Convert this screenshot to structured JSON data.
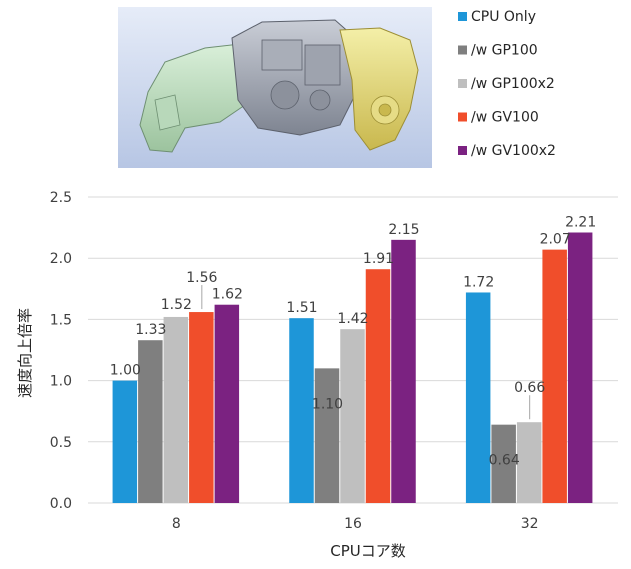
{
  "chart_data": {
    "type": "bar",
    "title": "",
    "xlabel": "CPUコア数",
    "ylabel": "速度向上倍率",
    "categories": [
      "8",
      "16",
      "32"
    ],
    "ylim": [
      0,
      2.5
    ],
    "yticks": [
      "0.0",
      "0.5",
      "1.0",
      "1.5",
      "2.0",
      "2.5"
    ],
    "grid": true,
    "legend_position": "top-right",
    "series": [
      {
        "name": "CPU Only",
        "color": "#1E96D8",
        "values": [
          1.0,
          1.51,
          1.72
        ],
        "labels": [
          "1.00",
          "1.51",
          "1.72"
        ]
      },
      {
        "name": "/w GP100",
        "color": "#7F7F7F",
        "values": [
          1.33,
          1.1,
          0.64
        ],
        "labels": [
          "1.33",
          "1.10",
          "0.64"
        ]
      },
      {
        "name": "/w GP100x2",
        "color": "#BFBFBF",
        "values": [
          1.52,
          1.42,
          0.66
        ],
        "labels": [
          "1.52",
          "1.42",
          "0.66"
        ]
      },
      {
        "name": "/w GV100",
        "color": "#F04E2B",
        "values": [
          1.56,
          1.91,
          2.07
        ],
        "labels": [
          "1.56",
          "1.91",
          "2.07"
        ]
      },
      {
        "name": "/w GV100x2",
        "color": "#7B2281",
        "values": [
          1.62,
          2.15,
          2.21
        ],
        "labels": [
          "1.62",
          "2.15",
          "2.21"
        ]
      }
    ],
    "highlight_label_color": "#E8000B"
  },
  "image": {
    "description_icon": "engine-gearbox-3d-model"
  }
}
